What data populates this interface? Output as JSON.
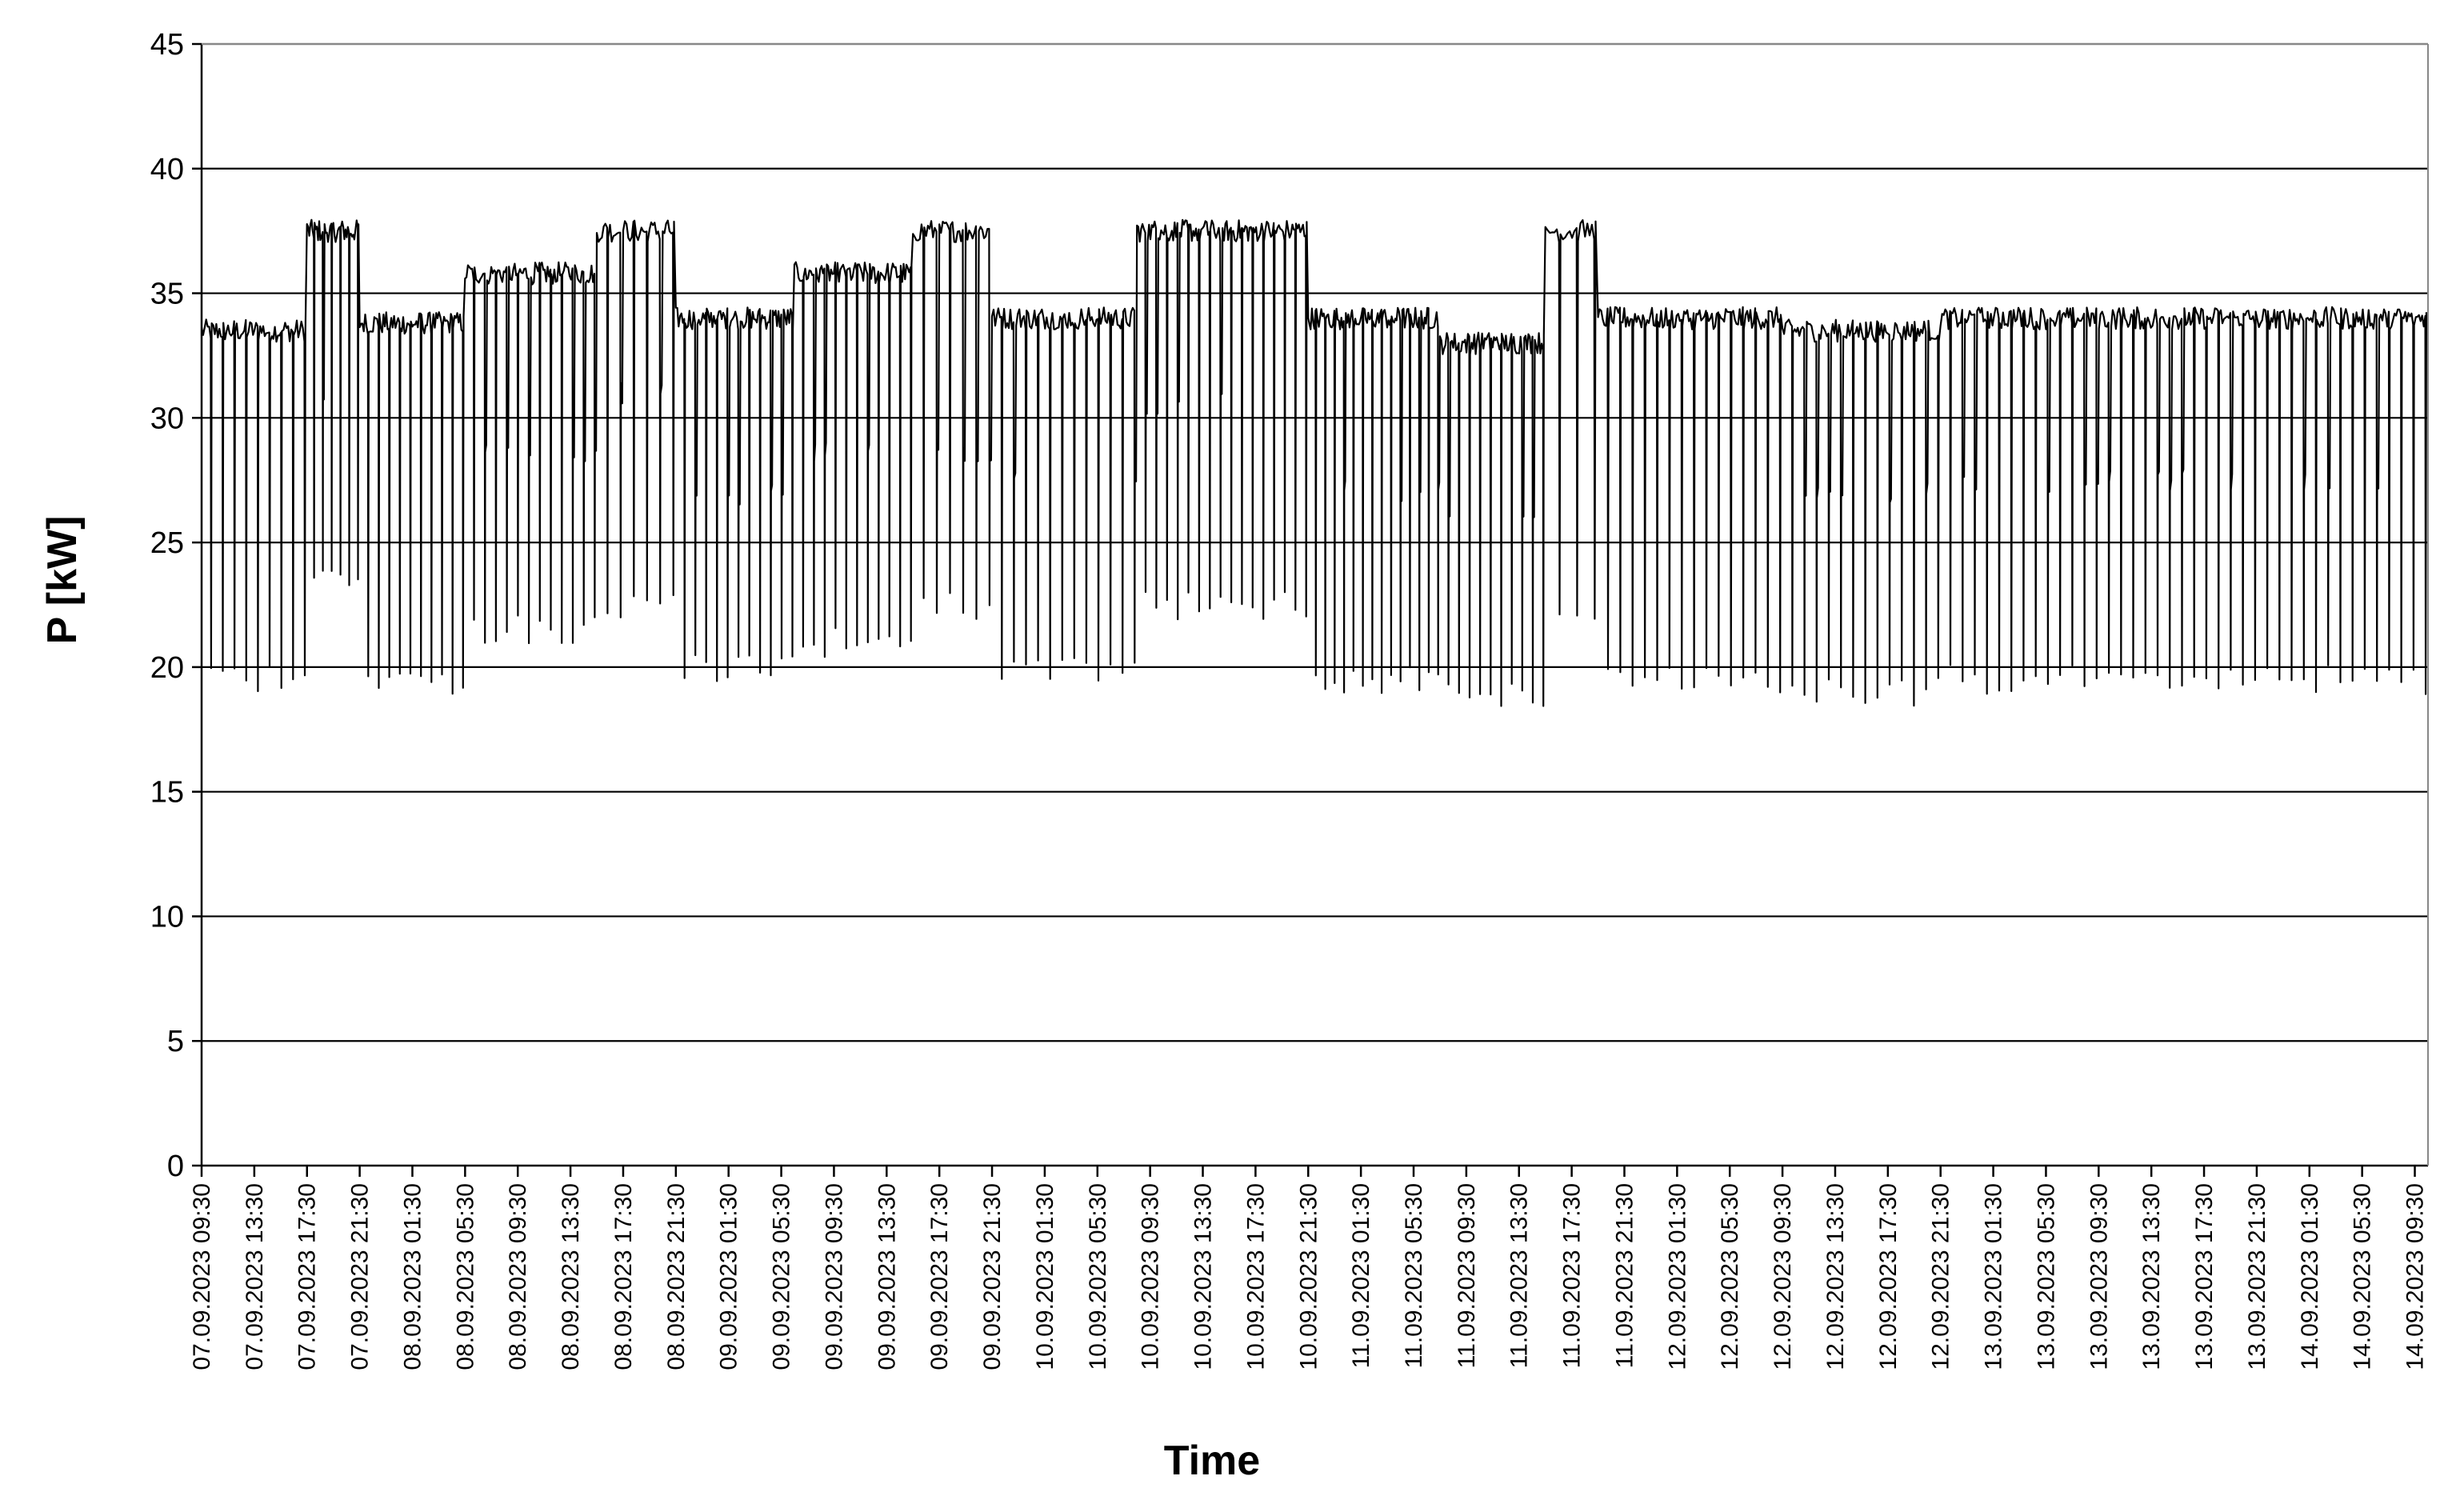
{
  "chart_data": {
    "type": "line",
    "title": "",
    "xlabel": "Time",
    "ylabel": "P [kW]",
    "ylim": [
      0,
      45
    ],
    "yticks": [
      0,
      5,
      10,
      15,
      20,
      25,
      30,
      35,
      40,
      45
    ],
    "grid": "horizontal",
    "legend": "none",
    "line_color": "#000000",
    "xlim": [
      "07.09.2023 09:30",
      "14.09.2023 10:30"
    ],
    "x_tick_labels": [
      "07.09.2023 09:30",
      "07.09.2023 13:30",
      "07.09.2023 17:30",
      "07.09.2023 21:30",
      "08.09.2023 01:30",
      "08.09.2023 05:30",
      "08.09.2023 09:30",
      "08.09.2023 13:30",
      "08.09.2023 17:30",
      "08.09.2023 21:30",
      "09.09.2023 01:30",
      "09.09.2023 05:30",
      "09.09.2023 09:30",
      "09.09.2023 13:30",
      "09.09.2023 17:30",
      "09.09.2023 21:30",
      "10.09.2023 01:30",
      "10.09.2023 05:30",
      "10.09.2023 09:30",
      "10.09.2023 13:30",
      "10.09.2023 17:30",
      "10.09.2023 21:30",
      "11.09.2023 01:30",
      "11.09.2023 05:30",
      "11.09.2023 09:30",
      "11.09.2023 13:30",
      "11.09.2023 17:30",
      "11.09.2023 21:30",
      "12.09.2023 01:30",
      "12.09.2023 05:30",
      "12.09.2023 09:30",
      "12.09.2023 13:30",
      "12.09.2023 17:30",
      "12.09.2023 21:30",
      "13.09.2023 01:30",
      "13.09.2023 05:30",
      "13.09.2023 09:30",
      "13.09.2023 13:30",
      "13.09.2023 17:30",
      "13.09.2023 21:30",
      "14.09.2023 01:30",
      "14.09.2023 05:30",
      "14.09.2023 09:30"
    ],
    "segments": [
      {
        "x": [
          "07.09.2023 09:30",
          "07.09.2023 17:30"
        ],
        "high": 33.5,
        "low": 19.5,
        "mid": 26.5,
        "cycles": 9
      },
      {
        "x": [
          "07.09.2023 17:30",
          "07.09.2023 21:30"
        ],
        "high": 37.5,
        "low": 23.5,
        "mid": 31,
        "cycles": 6
      },
      {
        "x": [
          "07.09.2023 21:30",
          "08.09.2023 05:30"
        ],
        "high": 33.8,
        "low": 19.5,
        "mid": 26.5,
        "cycles": 10
      },
      {
        "x": [
          "08.09.2023 05:30",
          "08.09.2023 15:30"
        ],
        "high": 35.8,
        "low": 21.5,
        "mid": 28.5,
        "cycles": 12
      },
      {
        "x": [
          "08.09.2023 15:30",
          "08.09.2023 21:30"
        ],
        "high": 37.5,
        "low": 22.5,
        "mid": 31,
        "cycles": 6
      },
      {
        "x": [
          "08.09.2023 21:30",
          "09.09.2023 06:30"
        ],
        "high": 34.0,
        "low": 20.0,
        "mid": 27,
        "cycles": 11
      },
      {
        "x": [
          "09.09.2023 06:30",
          "09.09.2023 15:30"
        ],
        "high": 35.8,
        "low": 21.0,
        "mid": 28.5,
        "cycles": 11
      },
      {
        "x": [
          "09.09.2023 15:30",
          "09.09.2023 21:30"
        ],
        "high": 37.5,
        "low": 22.5,
        "mid": 28.5,
        "cycles": 6
      },
      {
        "x": [
          "09.09.2023 21:30",
          "10.09.2023 08:30"
        ],
        "high": 34.0,
        "low": 20.0,
        "mid": 27.5,
        "cycles": 12
      },
      {
        "x": [
          "10.09.2023 08:30",
          "10.09.2023 21:30"
        ],
        "high": 37.5,
        "low": 22.5,
        "mid": 30.5,
        "cycles": 16
      },
      {
        "x": [
          "10.09.2023 21:30",
          "11.09.2023 07:30"
        ],
        "high": 34.0,
        "low": 19.5,
        "mid": 27,
        "cycles": 14
      },
      {
        "x": [
          "11.09.2023 07:30",
          "11.09.2023 15:30"
        ],
        "high": 33.0,
        "low": 19.0,
        "mid": 26.5,
        "cycles": 10
      },
      {
        "x": [
          "11.09.2023 15:30",
          "11.09.2023 19:30"
        ],
        "high": 37.5,
        "low": 22.5,
        "mid": 26.5,
        "cycles": 3
      },
      {
        "x": [
          "11.09.2023 19:30",
          "12.09.2023 09:30"
        ],
        "high": 34.0,
        "low": 19.5,
        "mid": 27.5,
        "cycles": 15
      },
      {
        "x": [
          "12.09.2023 09:30",
          "12.09.2023 21:30"
        ],
        "high": 33.5,
        "low": 19.0,
        "mid": 27,
        "cycles": 13
      },
      {
        "x": [
          "12.09.2023 21:30",
          "14.09.2023 10:30"
        ],
        "high": 34.0,
        "low": 19.5,
        "mid": 27.5,
        "cycles": 40
      }
    ]
  }
}
